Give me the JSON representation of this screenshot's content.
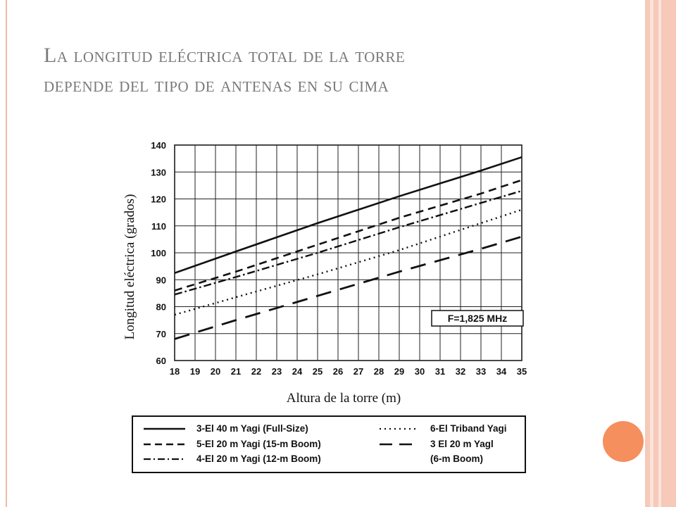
{
  "slide": {
    "title_line1": "La longitud eléctrica total de la torre",
    "title_line2": "depende del tipo de antenas en su cima"
  },
  "chart_data": {
    "type": "line",
    "xlabel": "Altura de la torre (m)",
    "ylabel": "Longitud eléctrica (grados)",
    "xlim": [
      18,
      35
    ],
    "ylim": [
      60,
      140
    ],
    "x_ticks": [
      18,
      19,
      20,
      21,
      22,
      23,
      24,
      25,
      26,
      27,
      28,
      29,
      30,
      31,
      32,
      33,
      34,
      35
    ],
    "y_ticks": [
      60,
      70,
      80,
      90,
      100,
      110,
      120,
      130,
      140
    ],
    "grid": true,
    "annotation": "F=1,825 MHz",
    "legend_position": "bottom",
    "series": [
      {
        "name": "3-El 40 m Yagi (Full-Size)",
        "style": "solid",
        "x": [
          18,
          21,
          25,
          29,
          33,
          35
        ],
        "y": [
          92.5,
          100.5,
          111,
          121,
          130.5,
          135.5
        ]
      },
      {
        "name": "5-El 20 m Yagi (15-m Boom)",
        "style": "dashed",
        "x": [
          18,
          21,
          25,
          29,
          33,
          35
        ],
        "y": [
          86,
          93,
          103,
          113,
          122,
          127
        ]
      },
      {
        "name": "4-El 20 m Yagi (12-m Boom)",
        "style": "dash-dot",
        "x": [
          18,
          21,
          25,
          29,
          33,
          35
        ],
        "y": [
          84.5,
          91,
          100,
          109.5,
          118.5,
          123
        ]
      },
      {
        "name": "6-El Triband Yagi",
        "style": "dotted",
        "x": [
          18,
          21,
          25,
          29,
          33,
          35
        ],
        "y": [
          77,
          83.5,
          92,
          101,
          111,
          116
        ]
      },
      {
        "name_line1": "3 El 20 m Yagl",
        "name_line2": "(6-m Boom)",
        "style": "long-dash",
        "x": [
          18,
          21,
          25,
          29,
          33,
          35
        ],
        "y": [
          68,
          75,
          84,
          93,
          101.5,
          106
        ]
      }
    ]
  }
}
